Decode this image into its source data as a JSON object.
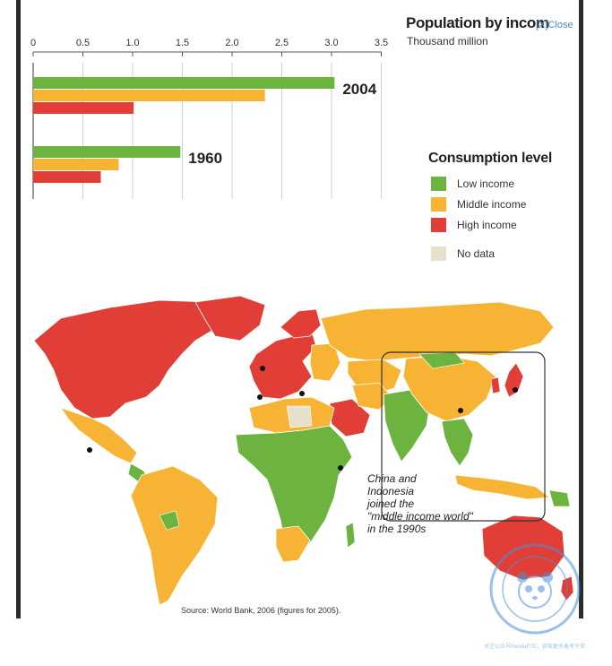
{
  "header": {
    "title": "Population by incom",
    "close_label": "[X]Close",
    "subtitle": "Thousand million"
  },
  "chart_data": {
    "type": "bar",
    "orientation": "horizontal",
    "title": "Population by incom",
    "subtitle": "Thousand million",
    "xlim": [
      0,
      3.5
    ],
    "x_ticks": [
      0,
      0.5,
      1.0,
      1.5,
      2.0,
      2.5,
      3.0,
      3.5
    ],
    "x_tick_labels": [
      "0",
      "0.5",
      "1.0",
      "1.5",
      "2.0",
      "2.5",
      "3.0",
      "3.5"
    ],
    "grid": true,
    "categories": [
      "2004",
      "1960"
    ],
    "series": [
      {
        "name": "Low income",
        "color": "#6db33f",
        "values": [
          3.03,
          1.48
        ]
      },
      {
        "name": "Middle income",
        "color": "#f7b334",
        "values": [
          2.33,
          0.86
        ]
      },
      {
        "name": "High income",
        "color": "#e03e36",
        "values": [
          1.01,
          0.68
        ]
      }
    ]
  },
  "legend": {
    "title": "Consumption level",
    "items": [
      {
        "label": "Low income",
        "color": "#6db33f"
      },
      {
        "label": "Middle income",
        "color": "#f7b334"
      },
      {
        "label": "High income",
        "color": "#e03e36"
      },
      {
        "label": "No data",
        "color": "#e6e0cc"
      }
    ]
  },
  "map": {
    "annotation": [
      "China and",
      "Indonesia",
      "joined the",
      "\"middle income world\"",
      "in the 1990s"
    ],
    "source": "Source: World Bank, 2006 (figures for 2005).",
    "colors": {
      "low": "#6db33f",
      "middle": "#f7b334",
      "high": "#e03e36",
      "nodata": "#e6e0cc"
    }
  },
  "watermark": {
    "footnote": "关注公众号PandaPTE，获取更多备考干货"
  }
}
